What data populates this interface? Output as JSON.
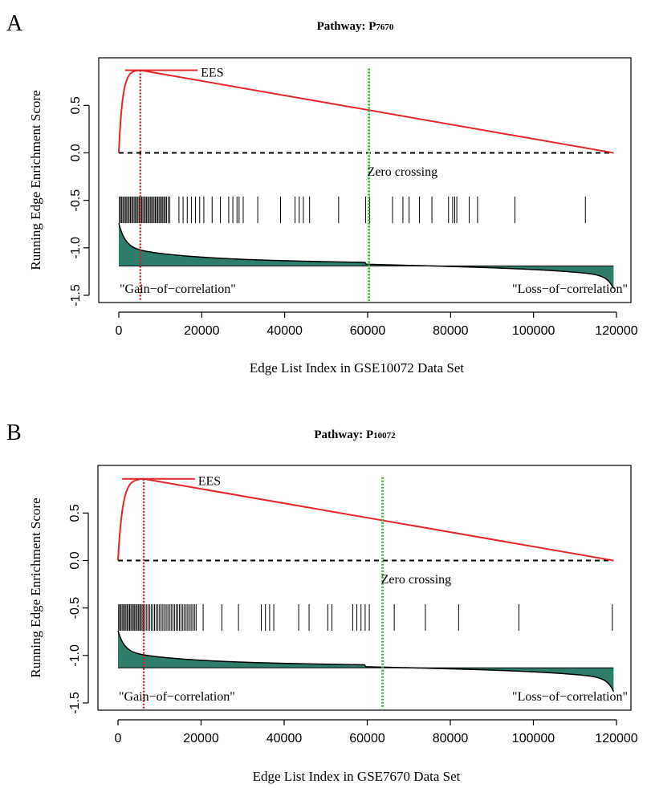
{
  "colors": {
    "ees_curve": "#e3262b",
    "ees_marker": "#d41e2a",
    "zero_crossing": "#2db52d",
    "fill": "#2e7d6b",
    "axis": "#000000"
  },
  "chart_data": [
    {
      "type": "line",
      "panel_label": "A",
      "title_prefix": "Pathway: P",
      "title_sub": "7670",
      "xlabel": "Edge List Index in GSE10072 Data Set",
      "ylabel": "Running Edge Enrichment Score",
      "xlim": [
        0,
        120000
      ],
      "ylim": [
        -1.5,
        0.9
      ],
      "x_ticks": [
        0,
        20000,
        40000,
        60000,
        80000,
        100000,
        120000
      ],
      "y_ticks": [
        -1.5,
        -1.0,
        -0.5,
        0.0,
        0.5
      ],
      "y_tick_labels": [
        "-1.5",
        "-1.0",
        "-0.5",
        "0.0",
        "0.5"
      ],
      "n_edges": 119300,
      "max_es": 0.87,
      "peak_index": 5200,
      "rise_scale": 900,
      "ees_label": "EES",
      "ees_segment_x": [
        1500,
        19000
      ],
      "zero_crossing_x": 60300,
      "zero_crossing_label": "Zero crossing",
      "barcode_y_range": [
        -0.46,
        -0.74
      ],
      "barcode_positions": [
        150,
        400,
        700,
        1000,
        1300,
        1600,
        1900,
        2200,
        2500,
        2800,
        3100,
        3400,
        3700,
        4000,
        4300,
        4600,
        4900,
        5200,
        5500,
        5800,
        6100,
        6400,
        6700,
        7000,
        7300,
        7600,
        7900,
        8200,
        8500,
        8800,
        9100,
        9400,
        9700,
        10000,
        10300,
        10600,
        10900,
        11200,
        11500,
        11900,
        12300,
        14500,
        15500,
        16500,
        17500,
        18500,
        19500,
        20500,
        22500,
        24500,
        26500,
        27500,
        28500,
        29000,
        30000,
        33500,
        39000,
        42500,
        43500,
        44500,
        46000,
        53000,
        59500,
        60500,
        66000,
        68500,
        70000,
        72500,
        75500,
        79500,
        80500,
        81000,
        81500,
        84500,
        86500,
        95500,
        112500
      ],
      "correlation_baseline": -1.19,
      "correlation_min": -0.74,
      "correlation_max": -1.43,
      "gain_label": "\"Gain−of−correlation\"",
      "loss_label": "\"Loss−of−correlation\""
    },
    {
      "type": "line",
      "panel_label": "B",
      "title_prefix": "Pathway: P",
      "title_sub": "10072",
      "xlabel": "Edge List Index in GSE7670 Data Set",
      "ylabel": "Running Edge Enrichment Score",
      "xlim": [
        0,
        120000
      ],
      "ylim": [
        -1.5,
        0.9
      ],
      "x_ticks": [
        0,
        20000,
        40000,
        60000,
        80000,
        100000,
        120000
      ],
      "y_ticks": [
        -1.5,
        -1.0,
        -0.5,
        0.0,
        0.5
      ],
      "y_tick_labels": [
        "-1.5",
        "-1.0",
        "-0.5",
        "0.0",
        "0.5"
      ],
      "n_edges": 119300,
      "max_es": 0.86,
      "peak_index": 6200,
      "rise_scale": 1100,
      "ees_label": "EES",
      "ees_segment_x": [
        1000,
        18500
      ],
      "zero_crossing_x": 63700,
      "zero_crossing_label": "Zero crossing",
      "barcode_y_range": [
        -0.46,
        -0.74
      ],
      "barcode_positions": [
        150,
        400,
        700,
        1000,
        1300,
        1600,
        1900,
        2200,
        2500,
        2800,
        3100,
        3400,
        3700,
        4000,
        4300,
        4600,
        4900,
        5200,
        5500,
        5800,
        6100,
        6400,
        6800,
        7200,
        7600,
        8000,
        8400,
        8800,
        9200,
        9600,
        10000,
        10400,
        10800,
        11200,
        11600,
        12000,
        12400,
        12800,
        13200,
        13600,
        14000,
        14400,
        14800,
        15200,
        15600,
        16000,
        16400,
        16800,
        17200,
        17600,
        18000,
        18400,
        18800,
        20500,
        25000,
        29000,
        34500,
        35500,
        36500,
        37500,
        43500,
        46000,
        50500,
        51500,
        56500,
        57500,
        58500,
        59500,
        60500,
        66500,
        74000,
        82000,
        96500,
        119000
      ],
      "correlation_baseline": -1.13,
      "correlation_min": -0.74,
      "correlation_max": -1.38,
      "gain_label": "\"Gain−of−correlation\"",
      "loss_label": "\"Loss−of−correlation\""
    }
  ]
}
